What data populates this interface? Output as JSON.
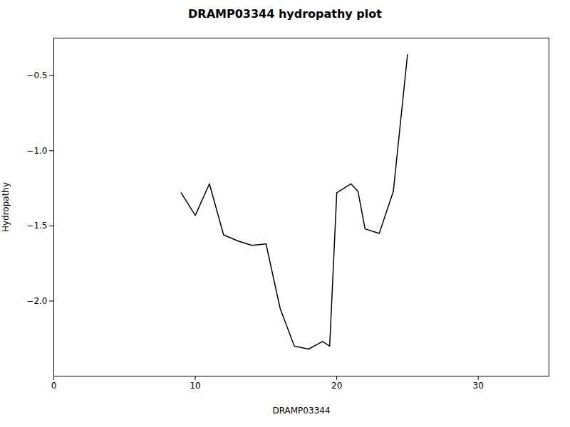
{
  "chart_data": {
    "type": "line",
    "title": "DRAMP03344 hydropathy plot",
    "xlabel": "DRAMP03344",
    "ylabel": "Hydropathy",
    "x": [
      9,
      10,
      11,
      12,
      13,
      14,
      15,
      16,
      17,
      18,
      19,
      19.5,
      20,
      21,
      21.5,
      22,
      23,
      24,
      25
    ],
    "values": [
      -1.28,
      -1.43,
      -1.22,
      -1.56,
      -1.6,
      -1.63,
      -1.62,
      -2.05,
      -2.3,
      -2.32,
      -2.27,
      -2.3,
      -1.28,
      -1.22,
      -1.27,
      -1.52,
      -1.55,
      -1.27,
      -0.36
    ],
    "color": "#000000",
    "xlim": [
      0,
      35
    ],
    "xticks": [
      0,
      10,
      20,
      30
    ],
    "ylim": [
      -2.5,
      -0.25
    ],
    "yticks": [
      {
        "value": -2.0,
        "label": "−2.0"
      },
      {
        "value": -1.5,
        "label": "−1.5"
      },
      {
        "value": -1.0,
        "label": "−1.0"
      },
      {
        "value": -0.5,
        "label": "−0.5"
      }
    ],
    "grid": false
  }
}
